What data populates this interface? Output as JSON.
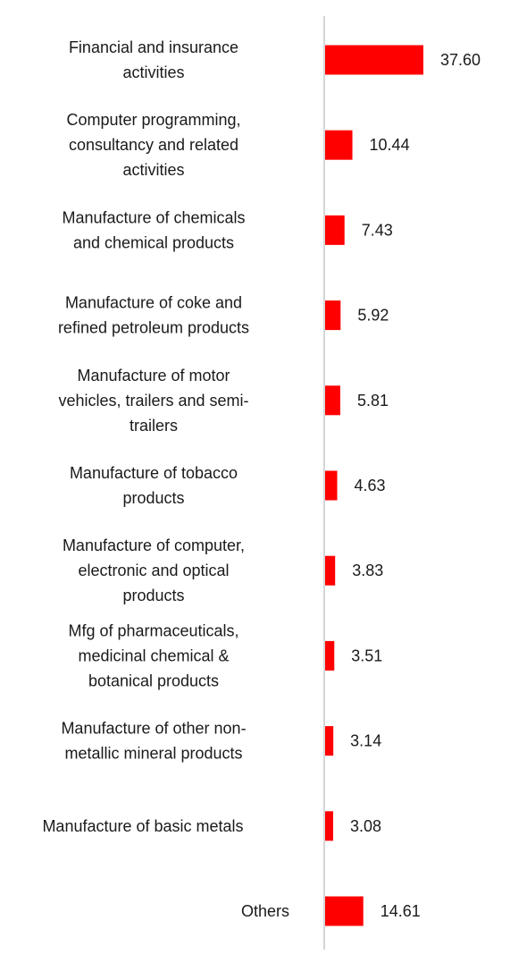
{
  "chart_data": {
    "type": "bar",
    "orientation": "horizontal",
    "title": "",
    "xlabel": "",
    "ylabel": "",
    "grid": false,
    "legend": "none",
    "xlim": [
      0,
      40
    ],
    "bar_color": "#ff0000",
    "axis_color": "#c8c8c8",
    "categories": [
      [
        "Financial and insurance",
        "activities"
      ],
      [
        "Computer programming,",
        "consultancy and related",
        "activities"
      ],
      [
        "Manufacture of chemicals",
        "and chemical products"
      ],
      [
        "Manufacture of coke and",
        "refined petroleum products"
      ],
      [
        "Manufacture of motor",
        "vehicles, trailers and semi-",
        "trailers"
      ],
      [
        "Manufacture of tobacco",
        "products"
      ],
      [
        "Manufacture of computer,",
        "electronic and optical",
        "products"
      ],
      [
        "Mfg of pharmaceuticals,",
        "medicinal chemical &",
        "botanical products"
      ],
      [
        "Manufacture of other non-",
        "metallic mineral products"
      ],
      [
        "Manufacture of basic metals"
      ],
      [
        "Others"
      ]
    ],
    "values": [
      37.6,
      10.44,
      7.43,
      5.92,
      5.81,
      4.63,
      3.83,
      3.51,
      3.14,
      3.08,
      14.61
    ],
    "value_labels": [
      "37.60",
      "10.44",
      "7.43",
      "5.92",
      "5.81",
      "4.63",
      "3.83",
      "3.51",
      "3.14",
      "3.08",
      "14.61"
    ]
  }
}
